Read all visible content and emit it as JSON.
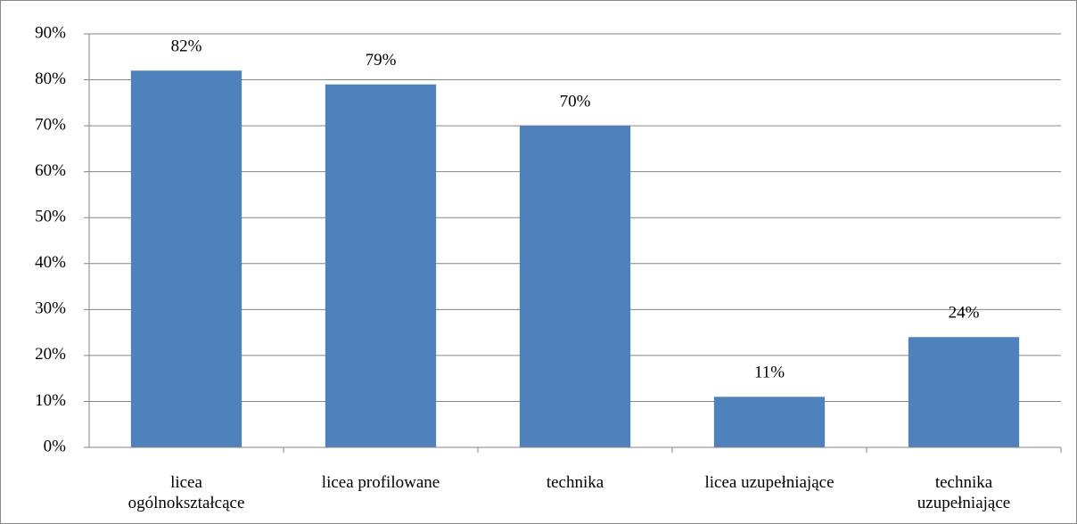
{
  "chart_data": {
    "type": "bar",
    "categories": [
      "licea ogólnokształcące",
      "licea profilowane",
      "technika",
      "licea uzupełniające",
      "technika uzupełniające"
    ],
    "values": [
      82,
      79,
      70,
      11,
      24
    ],
    "value_labels": [
      "82%",
      "79%",
      "70%",
      "11%",
      "24%"
    ],
    "color": "#4f81bd",
    "ylim": [
      0,
      90
    ],
    "yticks": [
      {
        "value": 0,
        "label": "0%"
      },
      {
        "value": 10,
        "label": "10%"
      },
      {
        "value": 20,
        "label": "20%"
      },
      {
        "value": 30,
        "label": "30%"
      },
      {
        "value": 40,
        "label": "40%"
      },
      {
        "value": 50,
        "label": "50%"
      },
      {
        "value": 60,
        "label": "60%"
      },
      {
        "value": 70,
        "label": "70%"
      },
      {
        "value": 80,
        "label": "80%"
      },
      {
        "value": 90,
        "label": "90%"
      }
    ],
    "grid": true
  }
}
